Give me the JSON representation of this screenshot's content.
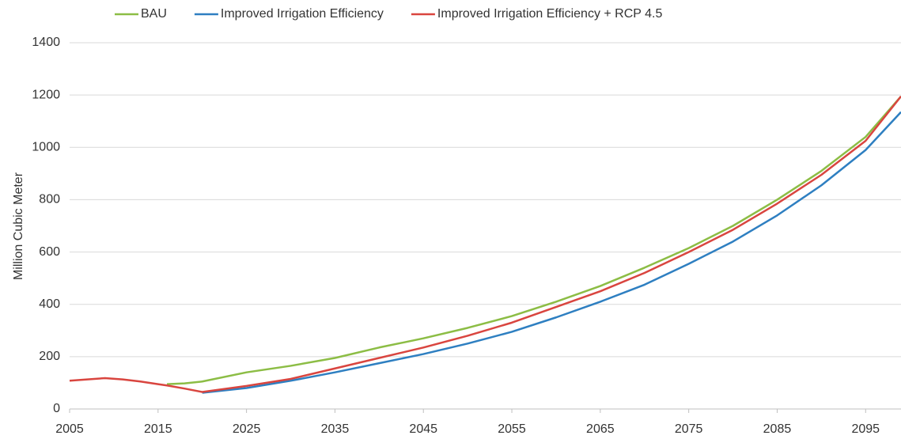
{
  "chart_data": {
    "type": "line",
    "y_label": "Million Cubic Meter",
    "x": [
      2005,
      2007,
      2009,
      2011,
      2013,
      2015,
      2016,
      2018,
      2020,
      2025,
      2030,
      2035,
      2040,
      2045,
      2050,
      2055,
      2060,
      2065,
      2070,
      2075,
      2080,
      2085,
      2090,
      2095,
      2099
    ],
    "series": [
      {
        "name": "BAU",
        "color": "#8cbd45",
        "values": [
          null,
          null,
          null,
          null,
          null,
          null,
          95,
          98,
          105,
          140,
          165,
          195,
          235,
          270,
          310,
          355,
          410,
          470,
          540,
          615,
          700,
          800,
          910,
          1040,
          1195
        ]
      },
      {
        "name": "Improved Irrigation Efficiency",
        "color": "#2e7fc1",
        "values": [
          null,
          null,
          null,
          null,
          null,
          null,
          null,
          null,
          62,
          80,
          108,
          140,
          175,
          210,
          250,
          295,
          350,
          410,
          475,
          555,
          640,
          740,
          855,
          990,
          1135
        ]
      },
      {
        "name": "Improved Irrigation Efficiency + RCP 4.5",
        "color": "#d9453f",
        "values": [
          108,
          113,
          118,
          113,
          105,
          95,
          90,
          78,
          65,
          88,
          115,
          155,
          195,
          235,
          280,
          330,
          390,
          450,
          520,
          600,
          685,
          785,
          895,
          1025,
          1195
        ]
      }
    ],
    "xlim": [
      2005,
      2099
    ],
    "xticks": [
      2005,
      2015,
      2025,
      2035,
      2045,
      2055,
      2065,
      2075,
      2085,
      2095
    ],
    "ylim": [
      0,
      1400
    ],
    "yticks": [
      0,
      200,
      400,
      600,
      800,
      1000,
      1200,
      1400
    ],
    "grid": true
  }
}
